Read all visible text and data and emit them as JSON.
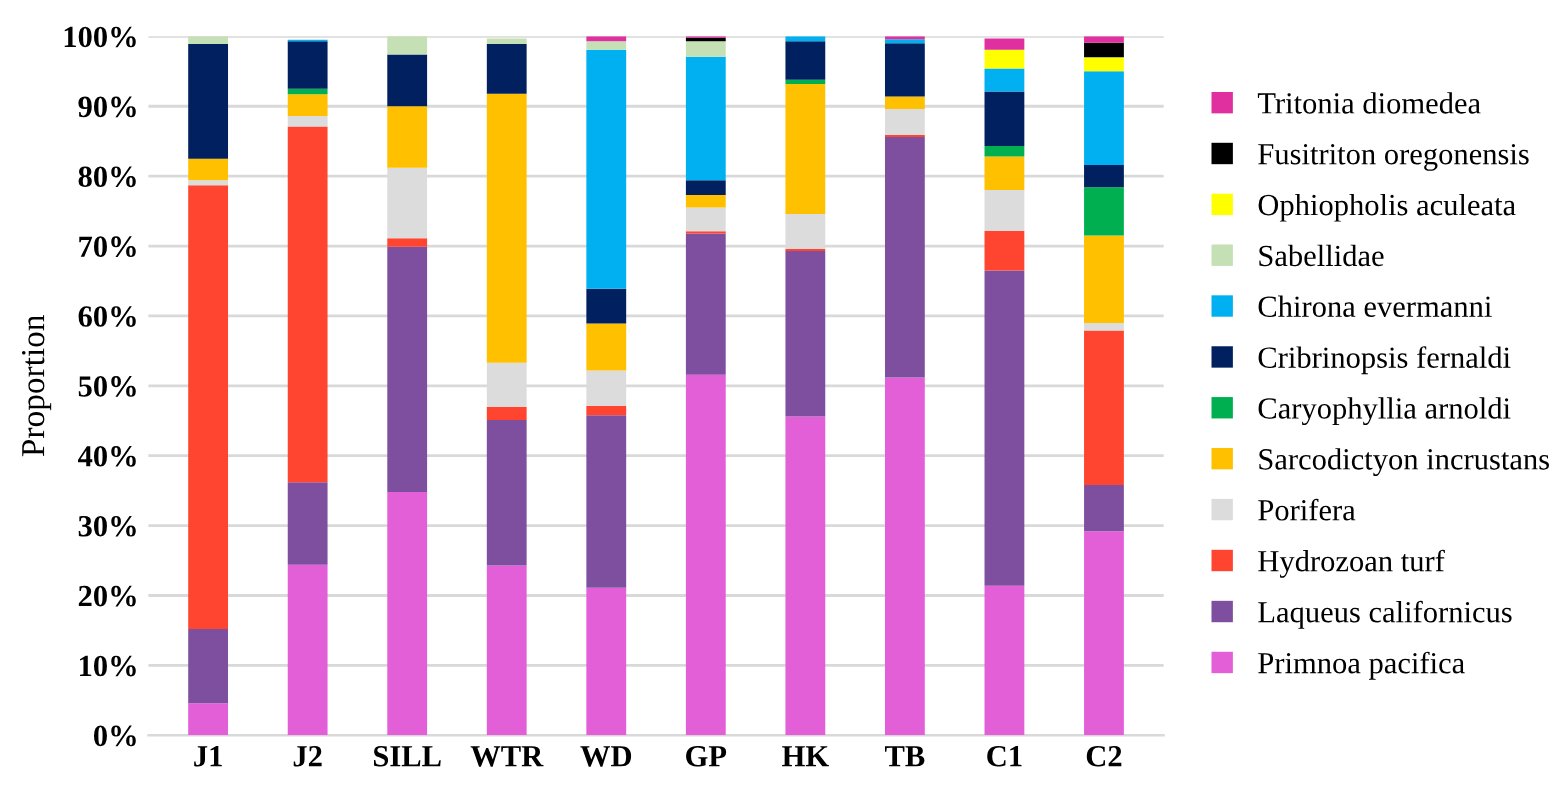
{
  "chart_data": {
    "type": "bar",
    "stacked": true,
    "ylabel": "Proportion",
    "categories": [
      "J1",
      "J2",
      "SILL",
      "WTR",
      "WD",
      "GP",
      "HK",
      "TB",
      "C1",
      "C2"
    ],
    "ylim": [
      0,
      100
    ],
    "yticks": [
      {
        "value": 0,
        "label": "0%"
      },
      {
        "value": 10,
        "label": "10%"
      },
      {
        "value": 20,
        "label": "20%"
      },
      {
        "value": 30,
        "label": "30%"
      },
      {
        "value": 40,
        "label": "40%"
      },
      {
        "value": 50,
        "label": "50%"
      },
      {
        "value": 60,
        "label": "60%"
      },
      {
        "value": 70,
        "label": "70%"
      },
      {
        "value": 80,
        "label": "80%"
      },
      {
        "value": 90,
        "label": "90%"
      },
      {
        "value": 100,
        "label": "100%"
      }
    ],
    "grid": "y",
    "legend": "right",
    "series": [
      {
        "name": "Primnoa pacifica",
        "color": "#e35fd8",
        "values": [
          4.6,
          24.4,
          34.8,
          24.3,
          21.1,
          51.6,
          45.6,
          51.2,
          21.4,
          29.2
        ]
      },
      {
        "name": "Laqueus californicus",
        "color": "#7f4f9f",
        "values": [
          10.6,
          11.8,
          35.1,
          20.8,
          24.7,
          20.2,
          23.7,
          34.4,
          45.1,
          6.6
        ]
      },
      {
        "name": "Hydrozoan turf",
        "color": "#ff4530",
        "values": [
          63.5,
          50.9,
          1.2,
          1.9,
          1.3,
          0.3,
          0.3,
          0.3,
          5.7,
          22.1
        ]
      },
      {
        "name": "Porifera",
        "color": "#dcdcdc",
        "values": [
          0.7,
          1.5,
          10.1,
          6.3,
          5.1,
          3.4,
          5.0,
          3.7,
          5.8,
          1.1
        ]
      },
      {
        "name": "Sarcodictyon incrustans",
        "color": "#ffc000",
        "values": [
          3.1,
          3.1,
          8.8,
          38.5,
          6.7,
          1.8,
          18.6,
          1.8,
          4.8,
          12.5
        ]
      },
      {
        "name": "Caryophyllia arnoldi",
        "color": "#00b050",
        "values": [
          0,
          0.8,
          0,
          0,
          0,
          0,
          0.6,
          0,
          1.5,
          6.9
        ]
      },
      {
        "name": "Cribrinopsis fernaldi",
        "color": "#002060",
        "values": [
          16.4,
          6.8,
          7.4,
          7.1,
          5.0,
          2.1,
          5.5,
          7.6,
          7.8,
          3.2
        ]
      },
      {
        "name": "Chirona evermanni",
        "color": "#00b0f0",
        "values": [
          0,
          0.2,
          0,
          0,
          34.2,
          17.7,
          0.7,
          0.6,
          3.3,
          13.4
        ]
      },
      {
        "name": "Sabellidae",
        "color": "#c5e0b4",
        "values": [
          1.1,
          null,
          2.6,
          0.8,
          1.2,
          2.2,
          0,
          0,
          null,
          0
        ]
      },
      {
        "name": "Ophiopholis aculeata",
        "color": "#ffff00",
        "values": [
          0,
          0,
          0,
          0,
          0,
          0,
          0,
          0,
          2.7,
          2.0
        ]
      },
      {
        "name": "Fusitriton oregonensis",
        "color": "#000000",
        "values": [
          0,
          0,
          0,
          0,
          0,
          0.5,
          0,
          0,
          0,
          2.1
        ]
      },
      {
        "name": "Tritonia diomedea",
        "color": "#e030a0",
        "values": [
          0,
          0,
          0,
          null,
          0.7,
          0.2,
          0,
          0.4,
          1.6,
          0.9
        ]
      }
    ]
  }
}
